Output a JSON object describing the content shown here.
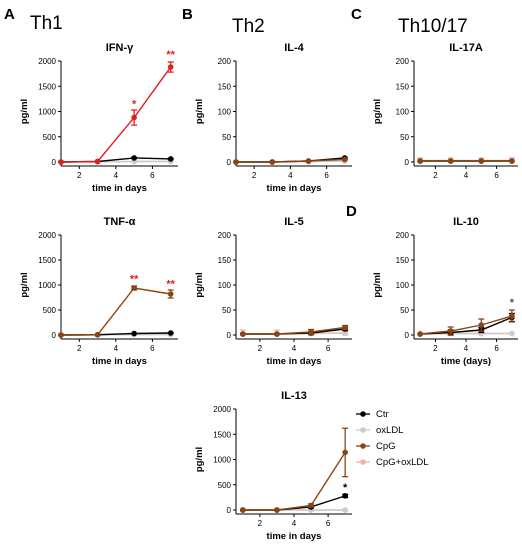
{
  "panel_letters": [
    "A",
    "B",
    "C",
    "D"
  ],
  "group_titles": [
    "Th1",
    "Th2",
    "Th10/17"
  ],
  "colors": {
    "Ctr": "#000000",
    "oxLDL": "#cccccc",
    "CpG": "#8b4513",
    "CpG+oxLDL": "#f0b0a8",
    "highlight_red": "#e02020"
  },
  "legend": [
    "Ctr",
    "oxLDL",
    "CpG",
    "CpG+oxLDL"
  ],
  "chart_data": [
    {
      "type": "line",
      "title": "IFN-γ",
      "xlabel": "time in days",
      "ylabel": "pg/ml",
      "x_ticks": [
        2,
        4,
        6
      ],
      "xlim": [
        1,
        7.4
      ],
      "y_ticks": [
        0,
        500,
        1000,
        1500,
        2000
      ],
      "ylim": [
        0,
        2000
      ],
      "annotations": [
        {
          "x": 5,
          "y": 1080,
          "text": "*",
          "color": "#e02020"
        },
        {
          "x": 7,
          "y": 2060,
          "text": "**",
          "color": "#e02020"
        }
      ],
      "series": [
        {
          "name": "Ctr",
          "color": "#000000",
          "x": [
            1,
            3,
            5,
            7
          ],
          "y": [
            0,
            10,
            80,
            60
          ],
          "err": [
            0,
            0,
            10,
            10
          ]
        },
        {
          "name": "oxLDL",
          "color": "#cccccc",
          "x": [
            1,
            3,
            5,
            7
          ],
          "y": [
            0,
            5,
            10,
            10
          ],
          "err": [
            0,
            0,
            0,
            0
          ]
        },
        {
          "name": "CpG",
          "color": "#e02020",
          "x": [
            1,
            3,
            5,
            7
          ],
          "y": [
            0,
            10,
            880,
            1880
          ],
          "err": [
            0,
            0,
            150,
            100
          ]
        },
        {
          "name": "CpG+oxLDL",
          "color": "#f0b0a8",
          "x": [
            1,
            3,
            5,
            7
          ],
          "y": [
            0,
            5,
            10,
            10
          ],
          "err": [
            0,
            0,
            0,
            0
          ]
        }
      ]
    },
    {
      "type": "line",
      "title": "IL-4",
      "xlabel": "time in days",
      "ylabel": "pg/ml",
      "x_ticks": [
        2,
        4,
        6
      ],
      "xlim": [
        1,
        7.4
      ],
      "y_ticks": [
        0,
        50,
        100,
        150,
        200
      ],
      "ylim": [
        0,
        200
      ],
      "annotations": [],
      "series": [
        {
          "name": "Ctr",
          "color": "#000000",
          "x": [
            1,
            3,
            5,
            7
          ],
          "y": [
            0,
            0,
            2,
            8
          ],
          "err": [
            0,
            0,
            0,
            1
          ]
        },
        {
          "name": "oxLDL",
          "color": "#cccccc",
          "x": [
            1,
            3,
            5,
            7
          ],
          "y": [
            0,
            0,
            1,
            2
          ],
          "err": [
            0,
            0,
            0,
            0
          ]
        },
        {
          "name": "CpG",
          "color": "#8b4513",
          "x": [
            1,
            3,
            5,
            7
          ],
          "y": [
            0,
            0,
            2,
            5
          ],
          "err": [
            0,
            0,
            0,
            1
          ]
        },
        {
          "name": "CpG+oxLDL",
          "color": "#f0b0a8",
          "x": [
            1,
            3,
            5,
            7
          ],
          "y": [
            0,
            0,
            1,
            2
          ],
          "err": [
            0,
            0,
            0,
            0
          ]
        }
      ]
    },
    {
      "type": "line",
      "title": "IL-17A",
      "xlabel": "",
      "ylabel": "pg/ml",
      "x_ticks": [
        2,
        4,
        6
      ],
      "xlim": [
        0.6,
        7.4
      ],
      "y_ticks": [
        0,
        50,
        100,
        150,
        200
      ],
      "ylim": [
        0,
        200
      ],
      "annotations": [],
      "series": [
        {
          "name": "Ctr",
          "color": "#000000",
          "x": [
            1,
            3,
            5,
            7
          ],
          "y": [
            2,
            2,
            2,
            2
          ],
          "err": [
            0,
            0,
            0,
            0
          ]
        },
        {
          "name": "oxLDL",
          "color": "#cccccc",
          "x": [
            1,
            3,
            5,
            7
          ],
          "y": [
            2,
            2,
            2,
            2
          ],
          "err": [
            0,
            0,
            0,
            0
          ]
        },
        {
          "name": "CpG",
          "color": "#8b4513",
          "x": [
            1,
            3,
            5,
            7
          ],
          "y": [
            2,
            2,
            2,
            2
          ],
          "err": [
            0,
            0,
            0,
            0
          ]
        },
        {
          "name": "CpG+oxLDL",
          "color": "#f0b0a8",
          "x": [
            1,
            3,
            5,
            7
          ],
          "y": [
            3,
            3,
            3,
            3
          ],
          "err": [
            5,
            5,
            5,
            5
          ]
        }
      ]
    },
    {
      "type": "line",
      "title": "TNF-α",
      "xlabel": "time in days",
      "ylabel": "pg/ml",
      "x_ticks": [
        2,
        4,
        6
      ],
      "xlim": [
        1,
        7.4
      ],
      "y_ticks": [
        0,
        500,
        1000,
        1500,
        2000
      ],
      "ylim": [
        0,
        2000
      ],
      "annotations": [
        {
          "x": 5,
          "y": 1050,
          "text": "**",
          "color": "#e02020"
        },
        {
          "x": 7,
          "y": 950,
          "text": "**",
          "color": "#e02020"
        }
      ],
      "series": [
        {
          "name": "Ctr",
          "color": "#000000",
          "x": [
            1,
            3,
            5,
            7
          ],
          "y": [
            0,
            5,
            30,
            40
          ],
          "err": [
            0,
            0,
            5,
            5
          ]
        },
        {
          "name": "oxLDL",
          "color": "#cccccc",
          "x": [
            1,
            3,
            5,
            7
          ],
          "y": [
            0,
            5,
            10,
            10
          ],
          "err": [
            0,
            0,
            0,
            0
          ]
        },
        {
          "name": "CpG",
          "color": "#8b4513",
          "x": [
            1,
            3,
            5,
            7
          ],
          "y": [
            0,
            5,
            940,
            820
          ],
          "err": [
            0,
            0,
            40,
            80
          ]
        },
        {
          "name": "CpG+oxLDL",
          "color": "#f0b0a8",
          "x": [
            1,
            3,
            5,
            7
          ],
          "y": [
            0,
            5,
            10,
            10
          ],
          "err": [
            0,
            0,
            0,
            0
          ]
        }
      ]
    },
    {
      "type": "line",
      "title": "IL-5",
      "xlabel": "time in days",
      "ylabel": "pg/ml",
      "x_ticks": [
        2,
        4,
        6
      ],
      "xlim": [
        0.6,
        7.4
      ],
      "y_ticks": [
        0,
        50,
        100,
        150,
        200
      ],
      "ylim": [
        0,
        200
      ],
      "annotations": [],
      "series": [
        {
          "name": "Ctr",
          "color": "#000000",
          "x": [
            1,
            3,
            5,
            7
          ],
          "y": [
            2,
            2,
            4,
            12
          ],
          "err": [
            0,
            0,
            3,
            3
          ]
        },
        {
          "name": "oxLDL",
          "color": "#cccccc",
          "x": [
            1,
            3,
            5,
            7
          ],
          "y": [
            2,
            2,
            3,
            4
          ],
          "err": [
            0,
            0,
            0,
            0
          ]
        },
        {
          "name": "CpG",
          "color": "#8b4513",
          "x": [
            1,
            3,
            5,
            7
          ],
          "y": [
            2,
            2,
            6,
            15
          ],
          "err": [
            0,
            0,
            5,
            4
          ]
        },
        {
          "name": "CpG+oxLDL",
          "color": "#f0b0a8",
          "x": [
            1,
            3,
            5,
            7
          ],
          "y": [
            2,
            2,
            3,
            4
          ],
          "err": [
            8,
            8,
            8,
            8
          ]
        }
      ]
    },
    {
      "type": "line",
      "title": "IL-10",
      "xlabel": "time (days)",
      "ylabel": "pg/ml",
      "x_ticks": [
        2,
        4,
        6
      ],
      "xlim": [
        0.6,
        7.4
      ],
      "y_ticks": [
        0,
        50,
        100,
        150,
        200
      ],
      "ylim": [
        0,
        200
      ],
      "annotations": [
        {
          "x": 7,
          "y": 58,
          "text": "*",
          "color": "#8b4513"
        }
      ],
      "series": [
        {
          "name": "Ctr",
          "color": "#000000",
          "x": [
            1,
            3,
            5,
            7
          ],
          "y": [
            2,
            5,
            10,
            35
          ],
          "err": [
            0,
            5,
            5,
            8
          ]
        },
        {
          "name": "oxLDL",
          "color": "#cccccc",
          "x": [
            1,
            3,
            5,
            7
          ],
          "y": [
            2,
            3,
            3,
            3
          ],
          "err": [
            0,
            0,
            0,
            0
          ]
        },
        {
          "name": "CpG",
          "color": "#8b4513",
          "x": [
            1,
            3,
            5,
            7
          ],
          "y": [
            2,
            8,
            20,
            38
          ],
          "err": [
            0,
            8,
            12,
            12
          ]
        },
        {
          "name": "CpG+oxLDL",
          "color": "#f0b0a8",
          "x": [
            1,
            3,
            5,
            7
          ],
          "y": [
            2,
            3,
            3,
            3
          ],
          "err": [
            0,
            0,
            0,
            0
          ]
        }
      ]
    },
    {
      "type": "line",
      "title": "IL-13",
      "xlabel": "time in days",
      "ylabel": "pg/ml",
      "x_ticks": [
        2,
        4,
        6
      ],
      "xlim": [
        0.6,
        7.4
      ],
      "y_ticks": [
        0,
        500,
        1000,
        1500,
        2000
      ],
      "ylim": [
        0,
        2000
      ],
      "annotations": [
        {
          "x": 7,
          "y": 380,
          "text": "*",
          "color": "#000000"
        }
      ],
      "series": [
        {
          "name": "Ctr",
          "color": "#000000",
          "x": [
            1,
            3,
            5,
            7
          ],
          "y": [
            0,
            0,
            60,
            280
          ],
          "err": [
            0,
            0,
            20,
            30
          ]
        },
        {
          "name": "oxLDL",
          "color": "#cccccc",
          "x": [
            1,
            3,
            5,
            7
          ],
          "y": [
            0,
            0,
            0,
            0
          ],
          "err": [
            0,
            0,
            0,
            0
          ]
        },
        {
          "name": "CpG",
          "color": "#8b4513",
          "x": [
            1,
            3,
            5,
            7
          ],
          "y": [
            0,
            0,
            90,
            1140
          ],
          "err": [
            0,
            0,
            30,
            480
          ]
        },
        {
          "name": "CpG+oxLDL",
          "color": "#f0b0a8",
          "x": [
            1,
            3,
            5,
            7
          ],
          "y": [
            0,
            0,
            0,
            0
          ],
          "err": [
            0,
            0,
            0,
            0
          ]
        }
      ]
    }
  ]
}
